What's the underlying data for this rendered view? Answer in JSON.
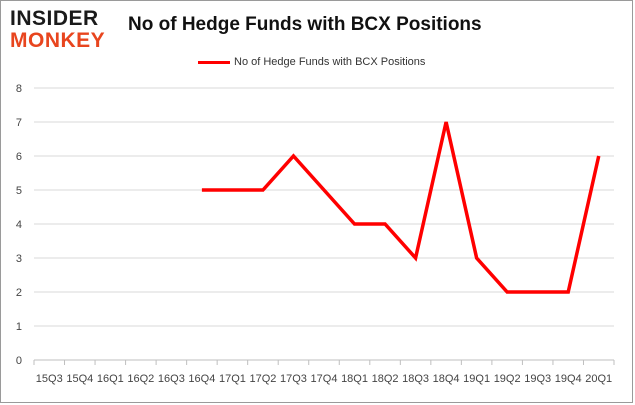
{
  "logo": {
    "line1": "INSIDER",
    "line2": "MONKEY"
  },
  "chart_data": {
    "type": "line",
    "title": "No of Hedge Funds with BCX Positions",
    "xlabel": "",
    "ylabel": "",
    "categories": [
      "15Q3",
      "15Q4",
      "16Q1",
      "16Q2",
      "16Q3",
      "16Q4",
      "17Q1",
      "17Q2",
      "17Q3",
      "17Q4",
      "18Q1",
      "18Q2",
      "18Q3",
      "18Q4",
      "19Q1",
      "19Q2",
      "19Q3",
      "19Q4",
      "20Q1"
    ],
    "series": [
      {
        "name": "No of Hedge Funds with BCX Positions",
        "color": "#ff0000",
        "values": [
          null,
          null,
          null,
          null,
          null,
          5,
          5,
          5,
          6,
          5,
          4,
          4,
          3,
          7,
          3,
          2,
          2,
          2,
          6
        ]
      }
    ],
    "ylim": [
      0,
      8
    ],
    "yticks": [
      0,
      1,
      2,
      3,
      4,
      5,
      6,
      7,
      8
    ],
    "grid": "horizontal",
    "legend": "top"
  }
}
